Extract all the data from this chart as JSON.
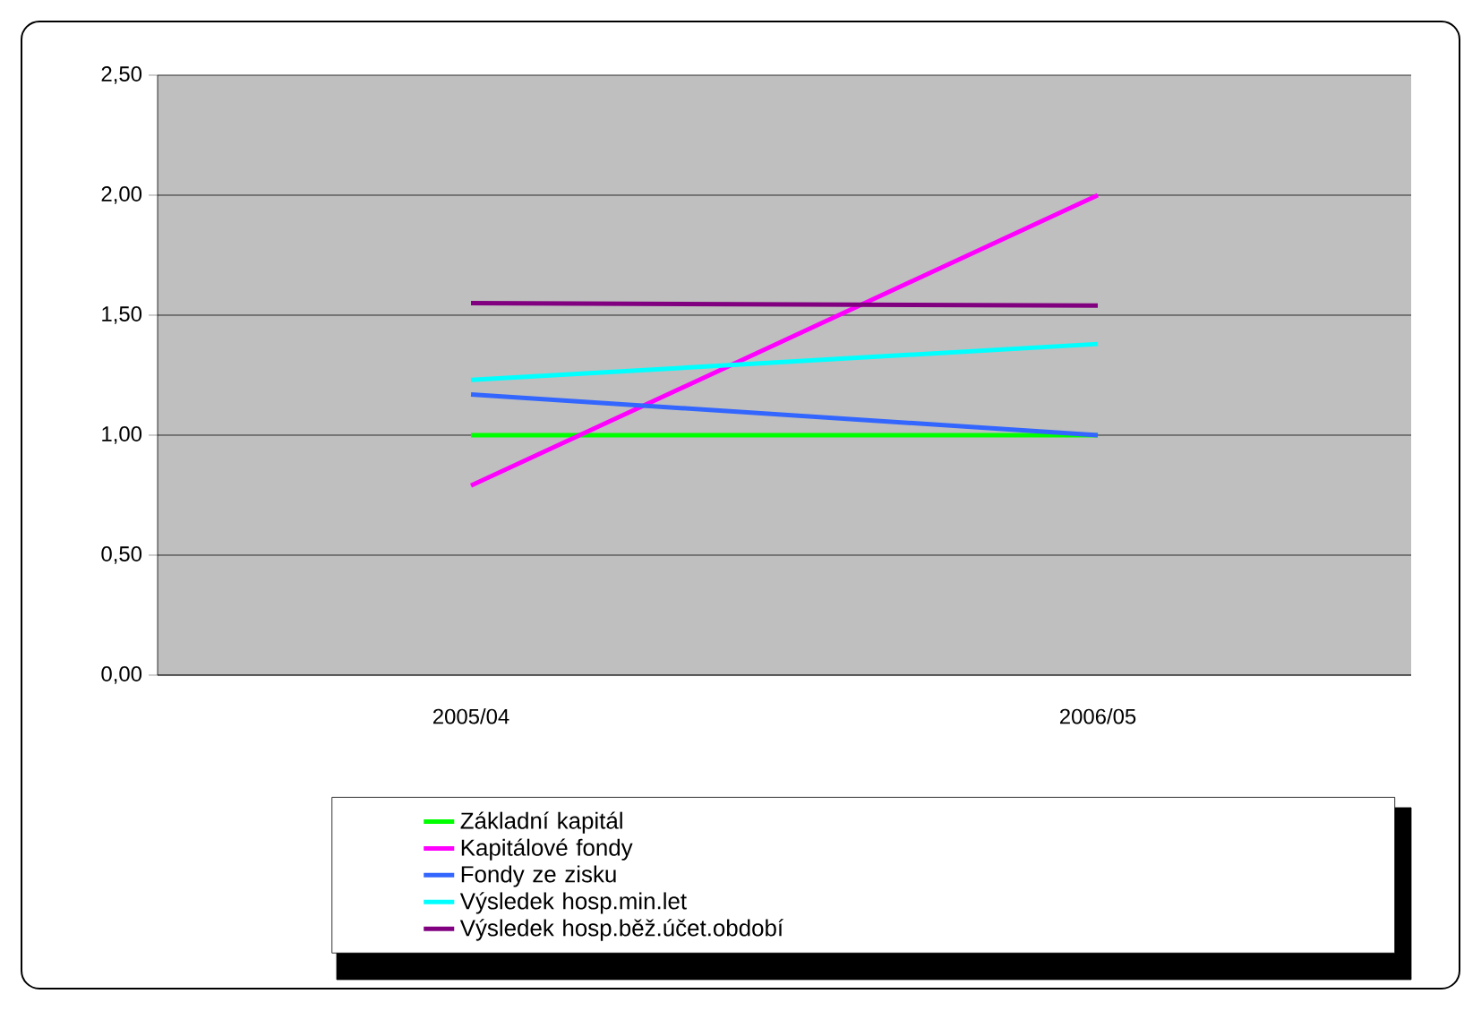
{
  "chart_data": {
    "type": "line",
    "categories": [
      "2005/04",
      "2006/05"
    ],
    "series": [
      {
        "name": "Základní kapitál",
        "color": "#00ff00",
        "values": [
          1.0,
          1.0
        ]
      },
      {
        "name": "Kapitálové fondy",
        "color": "#ff00ff",
        "values": [
          0.79,
          2.0
        ]
      },
      {
        "name": "Fondy ze zisku",
        "color": "#3366ff",
        "values": [
          1.17,
          1.0
        ]
      },
      {
        "name": "Výsledek hosp.min.let",
        "color": "#00ffff",
        "values": [
          1.23,
          1.38
        ]
      },
      {
        "name": "Výsledek hosp.běž.účet.období",
        "color": "#800080",
        "values": [
          1.55,
          1.54
        ]
      }
    ],
    "ylim": [
      0,
      2.5
    ],
    "yticks": [
      {
        "value": 0,
        "label": "0,00"
      },
      {
        "value": 0.5,
        "label": "0,50"
      },
      {
        "value": 1,
        "label": "1,00"
      },
      {
        "value": 1.5,
        "label": "1,50"
      },
      {
        "value": 2,
        "label": "2,00"
      },
      {
        "value": 2.5,
        "label": "2,50"
      }
    ],
    "grid": "y",
    "legend": "bottom",
    "marker": "none",
    "line_style": "solid"
  }
}
